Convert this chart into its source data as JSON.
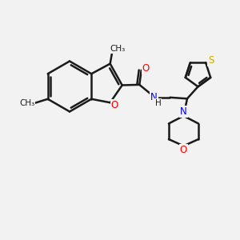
{
  "bg_color": "#f2f2f2",
  "bond_color": "#1a1a1a",
  "line_width": 1.8,
  "atom_colors": {
    "O": "#ff0000",
    "N": "#0000ee",
    "S": "#ccaa00",
    "C": "#1a1a1a",
    "H": "#1a1a1a"
  },
  "font_size": 8.5,
  "figsize": [
    3.0,
    3.0
  ],
  "dpi": 100,
  "xlim": [
    0,
    10
  ],
  "ylim": [
    0,
    10
  ]
}
